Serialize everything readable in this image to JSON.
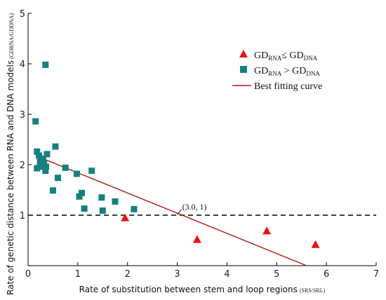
{
  "chart_data": {
    "type": "scatter",
    "xlim": [
      0,
      7
    ],
    "ylim": [
      0,
      5
    ],
    "x_ticks": [
      "0",
      "1",
      "2",
      "3",
      "4",
      "5",
      "6",
      "7"
    ],
    "y_ticks": [
      "0",
      "1",
      "2",
      "3",
      "4",
      "5"
    ],
    "xlabel": "Rate of substitution between stem and loop regions",
    "xlabel_sub": "(SRS/SRL)",
    "ylabel": "Rate of genetic distance between RNA and DNA models",
    "ylabel_sub": "(GD",
    "ylabel_sub_a": "RNA",
    "ylabel_sub_b": "/GD",
    "ylabel_sub_c": "DNA",
    "ylabel_sub_d": ")",
    "legend_position": "top-right",
    "series": [
      {
        "name_main": "GD",
        "name_sub1": "RNA",
        "name_mid": "≤ GD",
        "name_sub2": "DNA",
        "marker": "triangle",
        "color": "#ee1111",
        "points": [
          [
            1.95,
            0.95
          ],
          [
            3.4,
            0.52
          ],
          [
            4.8,
            0.69
          ],
          [
            5.78,
            0.42
          ]
        ]
      },
      {
        "name_main": "GD",
        "name_sub1": "RNA",
        "name_mid": " > GD",
        "name_sub2": "DNA",
        "marker": "square",
        "color": "#168080",
        "points": [
          [
            0.35,
            3.98
          ],
          [
            0.15,
            2.86
          ],
          [
            0.55,
            2.36
          ],
          [
            0.18,
            2.26
          ],
          [
            0.38,
            2.21
          ],
          [
            0.22,
            2.18
          ],
          [
            0.3,
            2.12
          ],
          [
            0.27,
            2.08
          ],
          [
            0.24,
            2.05
          ],
          [
            0.32,
            2.03
          ],
          [
            0.3,
            1.96
          ],
          [
            0.36,
            1.96
          ],
          [
            0.18,
            1.93
          ],
          [
            0.35,
            1.88
          ],
          [
            0.75,
            1.94
          ],
          [
            1.28,
            1.88
          ],
          [
            0.98,
            1.82
          ],
          [
            0.6,
            1.74
          ],
          [
            0.5,
            1.49
          ],
          [
            1.08,
            1.44
          ],
          [
            1.03,
            1.37
          ],
          [
            1.48,
            1.35
          ],
          [
            1.75,
            1.27
          ],
          [
            2.13,
            1.12
          ],
          [
            1.13,
            1.13
          ],
          [
            1.5,
            1.09
          ]
        ]
      }
    ],
    "fit_line": {
      "name": "Best fitting curve",
      "color": "#b21818",
      "points": [
        [
          0.35,
          2.1
        ],
        [
          5.6,
          -0.05
        ]
      ]
    },
    "reference_line": {
      "y": 1,
      "style": "dashed",
      "color": "#000000"
    },
    "annotation": {
      "text": "(3.0, 1)",
      "x": 3.0,
      "y": 1
    }
  }
}
